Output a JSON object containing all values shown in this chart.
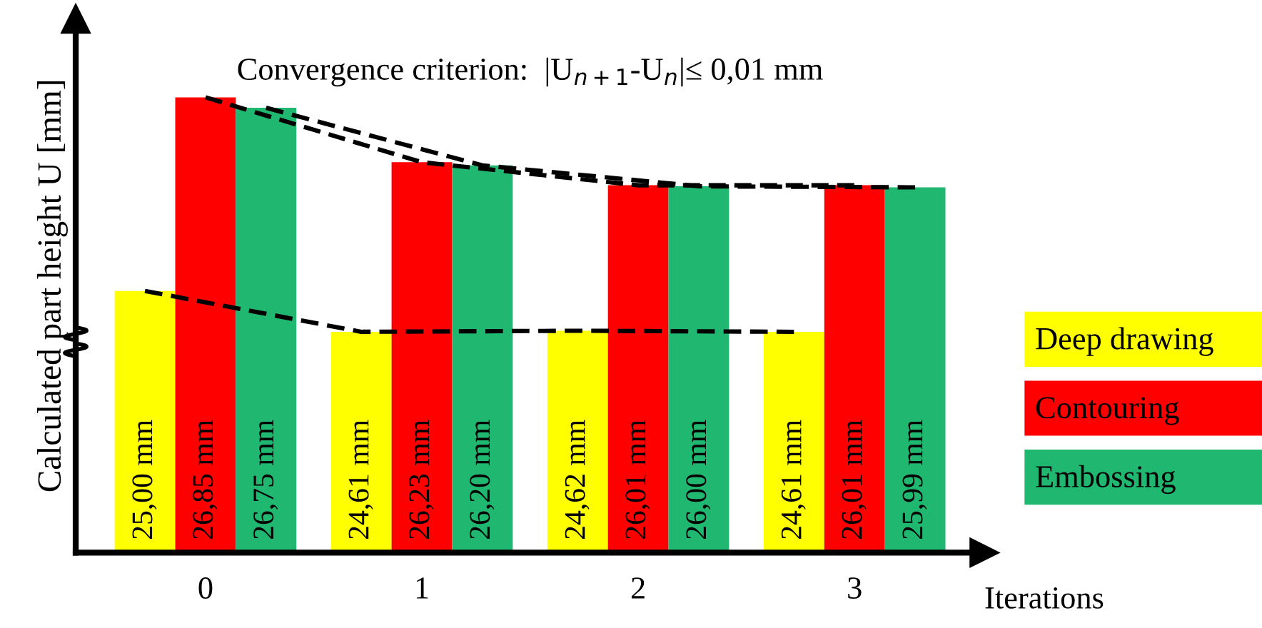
{
  "chart_data": {
    "type": "bar",
    "xlabel": "Iterations",
    "ylabel": "Calculated part height U [mm]",
    "xlim": [
      -0.6,
      3.6
    ],
    "xticks": [
      0,
      1,
      2,
      3
    ],
    "ylim": [
      22.5,
      27.6
    ],
    "tick_labels": "x",
    "grid": false,
    "legend": "right",
    "annotations": [
      "Convergence criterion:  |U$_{n+1}$-U$_{n}$|≤ 0,01 mm"
    ],
    "series": [
      {
        "name": "Deep drawing",
        "color": "#ffff00",
        "x": [
          -0.28,
          0.72,
          1.72,
          2.72
        ],
        "values": [
          25.0,
          24.61,
          24.62,
          24.61
        ],
        "value_labels": [
          "25,00 mm",
          "24,61 mm",
          "24,62 mm",
          "24,61 mm"
        ]
      },
      {
        "name": "Contouring",
        "color": "#ff0000",
        "x": [
          0,
          1,
          2,
          3
        ],
        "values": [
          26.85,
          26.23,
          26.01,
          26.01
        ],
        "value_labels": [
          "26,85 mm",
          "26,23 mm",
          "26,01 mm",
          "26,01 mm"
        ]
      },
      {
        "name": "Embossing",
        "color": "#20b870",
        "x": [
          0.28,
          1.28,
          2.28,
          3.28
        ],
        "values": [
          26.75,
          26.2,
          26.0,
          25.99
        ],
        "value_labels": [
          "26,75 mm",
          "26,20 mm",
          "26,00 mm",
          "25,99 mm"
        ]
      },
      {
        "type": "line",
        "line_style": "dashed",
        "color": "#000000",
        "x": [
          -0.28,
          0.72,
          1.72,
          2.72
        ],
        "values": [
          25.0,
          24.61,
          24.62,
          24.61
        ]
      },
      {
        "type": "line",
        "line_style": "dashed",
        "color": "#000000",
        "x": [
          0,
          1,
          2,
          3
        ],
        "values": [
          26.85,
          26.23,
          26.01,
          26.01
        ]
      },
      {
        "type": "line",
        "line_style": "dashed",
        "color": "#000000",
        "x": [
          0.28,
          1.28,
          2.28,
          3.28
        ],
        "values": [
          26.75,
          26.2,
          26.0,
          25.99
        ]
      }
    ]
  }
}
